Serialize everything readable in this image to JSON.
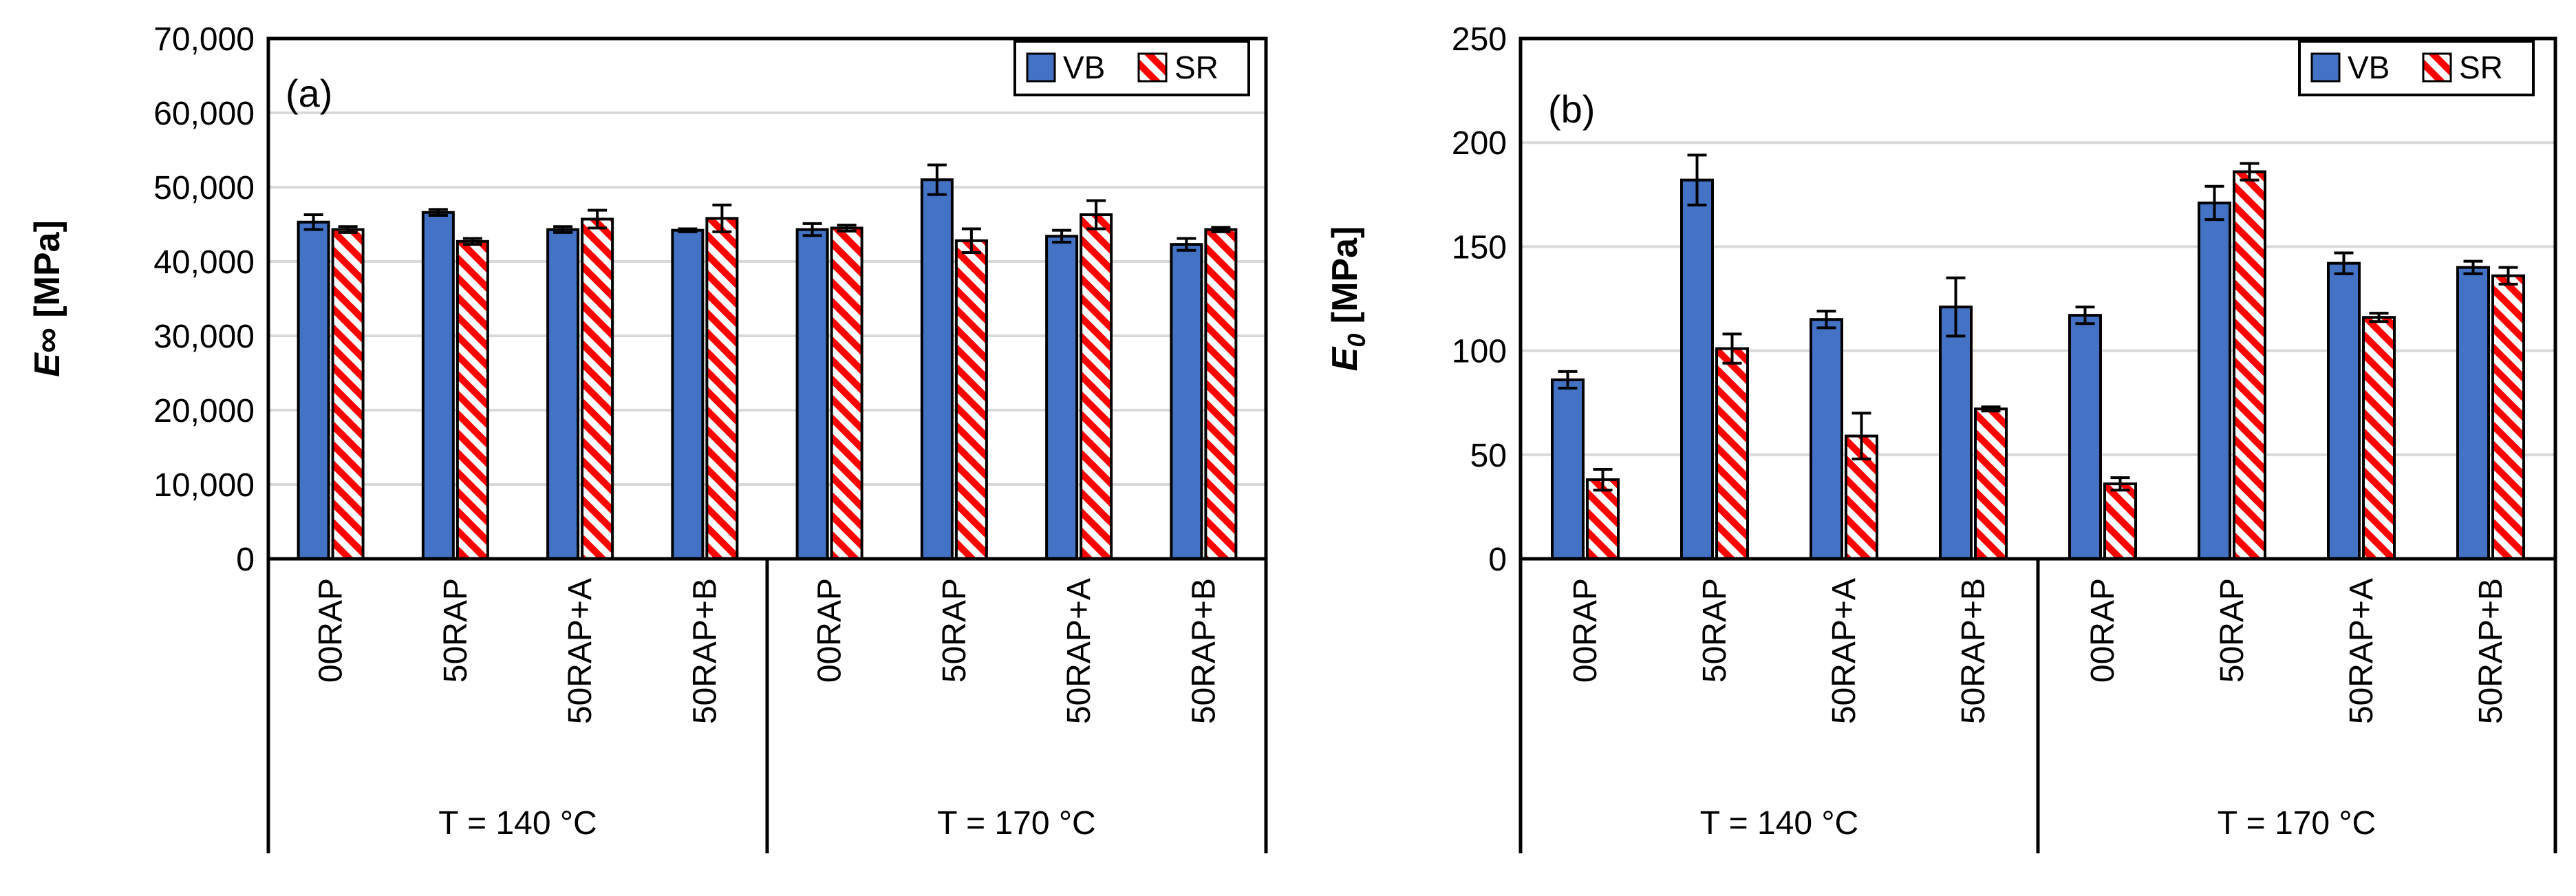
{
  "figure_title": "",
  "legend_entries": [
    "VB",
    "SR"
  ],
  "colors": {
    "vb_fill": "#4472C4",
    "sr_stripe": "#FF0000",
    "grid": "#D9D9D9",
    "axis": "#000000"
  },
  "chart_data": [
    {
      "type": "bar",
      "panel_label": "(a)",
      "title": "",
      "ylabel_main": "E∞",
      "ylabel_sub": "",
      "ylabel_unit": "[MPa]",
      "ylim": [
        0,
        70000
      ],
      "yticks": [
        0,
        10000,
        20000,
        30000,
        40000,
        50000,
        60000,
        70000
      ],
      "ytick_labels": [
        "0",
        "10,000",
        "20,000",
        "30,000",
        "40,000",
        "50,000",
        "60,000",
        "70,000"
      ],
      "grid": true,
      "legend_position": "top-right",
      "categories": [
        "00RAP",
        "50RAP",
        "50RAP+A",
        "50RAP+B",
        "00RAP",
        "50RAP",
        "50RAP+A",
        "50RAP+B"
      ],
      "groups": [
        {
          "label": "T = 140 °C",
          "count": 4
        },
        {
          "label": "T = 170 °C",
          "count": 4
        }
      ],
      "series": [
        {
          "name": "VB",
          "values": [
            45300,
            46600,
            44300,
            44200,
            44300,
            51000,
            43400,
            42300
          ],
          "errors": [
            1000,
            400,
            400,
            200,
            800,
            2000,
            800,
            800
          ]
        },
        {
          "name": "SR",
          "values": [
            44300,
            42700,
            45700,
            45800,
            44500,
            42800,
            46300,
            44300
          ],
          "errors": [
            400,
            400,
            1200,
            1800,
            400,
            1600,
            1900,
            300
          ]
        }
      ]
    },
    {
      "type": "bar",
      "panel_label": "(b)",
      "title": "",
      "ylabel_main": "E",
      "ylabel_sub": "0",
      "ylabel_unit": "[MPa]",
      "ylim": [
        0,
        250
      ],
      "yticks": [
        0,
        50,
        100,
        150,
        200,
        250
      ],
      "ytick_labels": [
        "0",
        "50",
        "100",
        "150",
        "200",
        "250"
      ],
      "grid": true,
      "legend_position": "top-right",
      "categories": [
        "00RAP",
        "50RAP",
        "50RAP+A",
        "50RAP+B",
        "00RAP",
        "50RAP",
        "50RAP+A",
        "50RAP+B"
      ],
      "groups": [
        {
          "label": "T = 140 °C",
          "count": 4
        },
        {
          "label": "T = 170 °C",
          "count": 4
        }
      ],
      "series": [
        {
          "name": "VB",
          "values": [
            86,
            182,
            115,
            121,
            117,
            171,
            142,
            140
          ],
          "errors": [
            4,
            12,
            4,
            14,
            4,
            8,
            5,
            3
          ]
        },
        {
          "name": "SR",
          "values": [
            38,
            101,
            59,
            72,
            36,
            186,
            116,
            136
          ],
          "errors": [
            5,
            7,
            11,
            1,
            3,
            4,
            2,
            4
          ]
        }
      ]
    }
  ]
}
